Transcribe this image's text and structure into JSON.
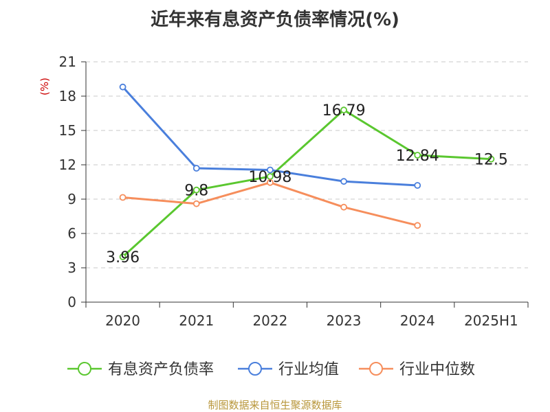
{
  "title": "近年来有息资产负债率情况(%)",
  "footer_source": "制图数据来自恒生聚源数据库",
  "chart_data": {
    "type": "line",
    "title": "近年来有息资产负债率情况(%)",
    "ylabel": "(%)",
    "xlabel": "",
    "categories": [
      "2020",
      "2021",
      "2022",
      "2023",
      "2024",
      "2025H1"
    ],
    "ylim": [
      0,
      21
    ],
    "yticks": [
      0,
      3,
      6,
      9,
      12,
      15,
      18,
      21
    ],
    "grid": true,
    "legend_position": "bottom",
    "series": [
      {
        "name": "有息资产负债率",
        "color": "#5ac72f",
        "values": [
          3.96,
          9.8,
          10.98,
          16.79,
          12.84,
          12.5
        ],
        "labels": [
          "3.96",
          "9.8",
          "10.98",
          "16.79",
          "12.84",
          "12.5"
        ]
      },
      {
        "name": "行业均值",
        "color": "#4a7fdc",
        "values": [
          18.8,
          11.7,
          11.55,
          10.55,
          10.2,
          null
        ],
        "labels": []
      },
      {
        "name": "行业中位数",
        "color": "#f68e5c",
        "values": [
          9.15,
          8.6,
          10.45,
          8.3,
          6.7,
          null
        ],
        "labels": []
      }
    ]
  }
}
